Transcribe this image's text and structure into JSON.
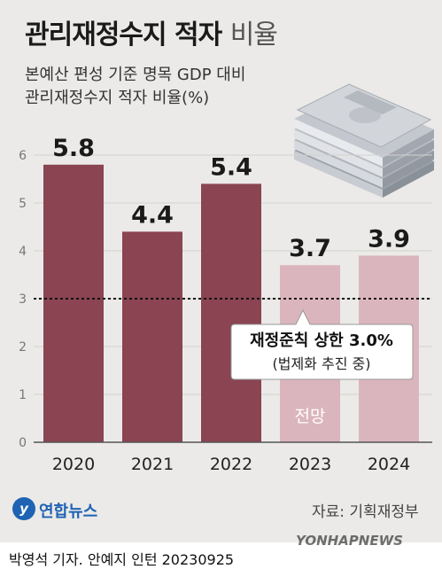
{
  "title_main": "관리재정수지 적자",
  "title_light": "비율",
  "subtitle_line1": "본예산 편성 기준 명목 GDP 대비",
  "subtitle_line2": "관리재정수지 적자 비율(%)",
  "colors": {
    "bar_actual": "#8a4452",
    "bar_forecast": "#dbb5bd",
    "background": "#ebeae8"
  },
  "chart_data": {
    "type": "bar",
    "categories": [
      "2020",
      "2021",
      "2022",
      "2023",
      "2024"
    ],
    "values": [
      5.8,
      4.4,
      5.4,
      3.7,
      3.9
    ],
    "data_labels": [
      "5.8",
      "4.4",
      "5.4",
      "3.7",
      "3.9"
    ],
    "forecast_flags": [
      false,
      false,
      false,
      true,
      true
    ],
    "yticks": [
      "0",
      "1",
      "2",
      "3",
      "4",
      "5",
      "6"
    ],
    "ylim": [
      0,
      6.6
    ],
    "reference_line": {
      "value": 3.0,
      "style": "dotted"
    },
    "annotation_line1": "재정준칙 상한 3.0%",
    "annotation_line2": "(법제화 추진 중)",
    "forecast_label": "전망"
  },
  "logo_mark": "y",
  "logo_text": "연합뉴스",
  "source": "자료: 기획재정부",
  "credit": "박영석 기자. 안예지 인턴  20230925",
  "watermark": "YONHAPNEWS"
}
